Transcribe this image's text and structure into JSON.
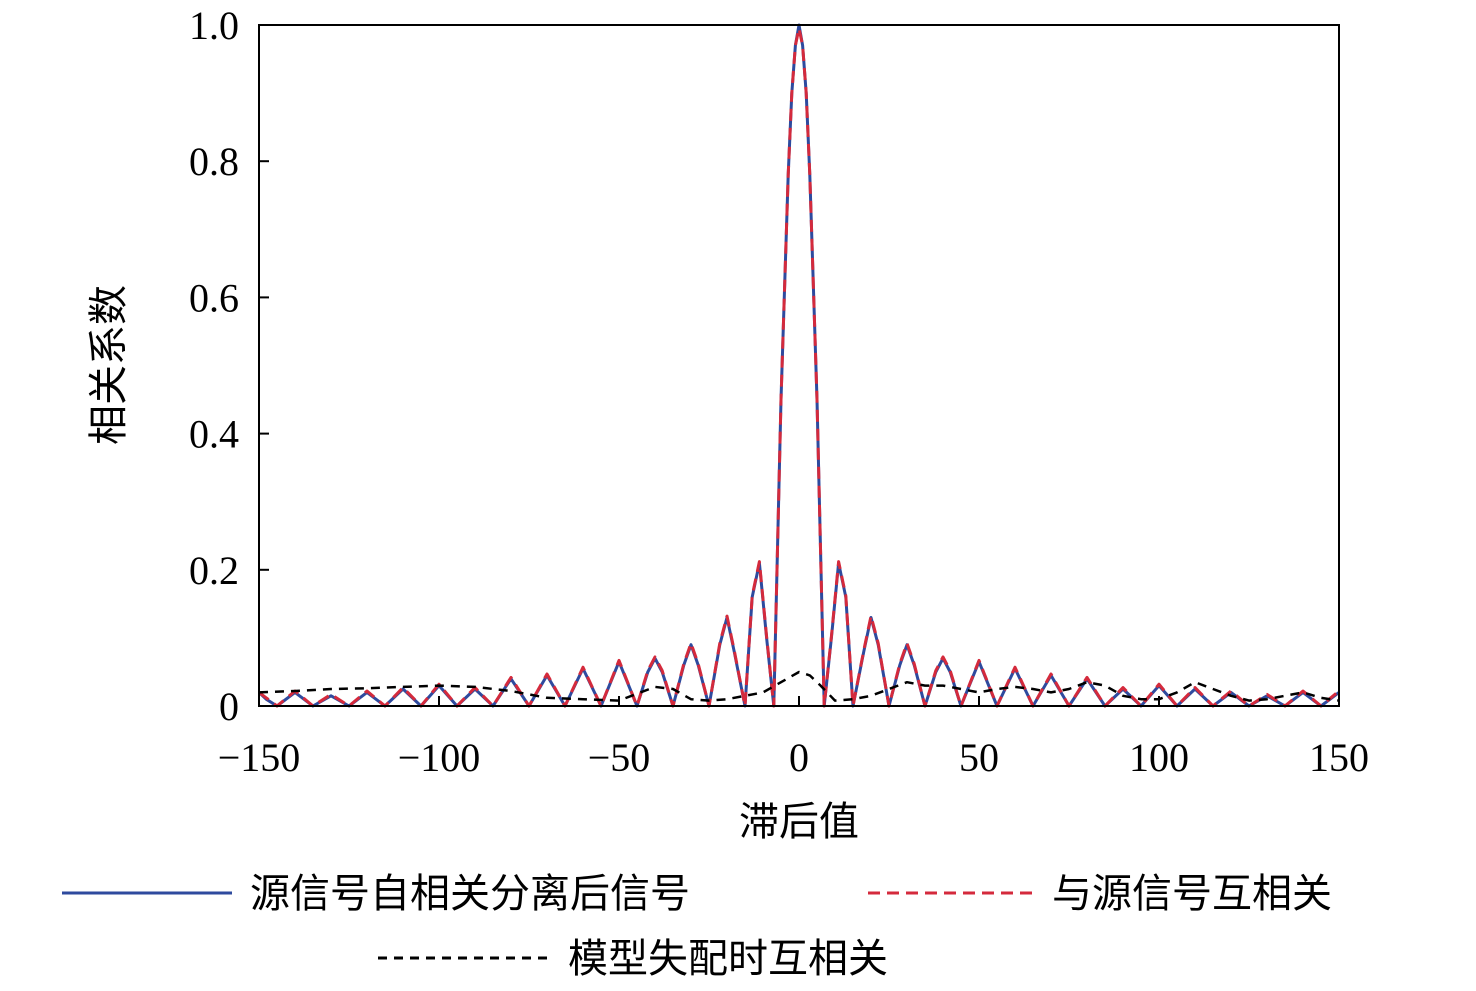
{
  "chart_data": {
    "type": "line",
    "xlabel": "滞后值",
    "ylabel": "相关系数",
    "xlim": [
      -150,
      150
    ],
    "ylim": [
      0,
      1.0
    ],
    "xticks": [
      -150,
      -100,
      -50,
      0,
      50,
      100,
      150
    ],
    "xtick_labels": [
      "−150",
      "−100",
      "−50",
      "0",
      "50",
      "100",
      "150"
    ],
    "yticks": [
      0,
      0.2,
      0.4,
      0.6,
      0.8,
      1.0
    ],
    "ytick_labels": [
      "0",
      "0.2",
      "0.4",
      "0.6",
      "0.8",
      "1.0"
    ],
    "grid": false,
    "legend_position": "bottom",
    "series": [
      {
        "name": "源信号自相关分离后信号",
        "color": "#2e4a9e",
        "dash": "solid",
        "x": [
          -150,
          -148,
          -145,
          -140,
          -135,
          -130,
          -125,
          -120,
          -115,
          -110,
          -105,
          -100,
          -95,
          -90,
          -85,
          -80,
          -75,
          -70,
          -65,
          -60,
          -55,
          -50,
          -45,
          -42,
          -40,
          -38,
          -35,
          -32,
          -30,
          -28,
          -25,
          -22,
          -20,
          -18,
          -15,
          -13,
          -11,
          -9,
          -7,
          -5,
          -3,
          -2,
          -1,
          0,
          1,
          2,
          3,
          5,
          7,
          9,
          11,
          13,
          15,
          18,
          20,
          22,
          25,
          28,
          30,
          32,
          35,
          38,
          40,
          42,
          45,
          50,
          55,
          60,
          65,
          70,
          75,
          80,
          85,
          90,
          95,
          100,
          105,
          110,
          115,
          120,
          125,
          130,
          135,
          140,
          145,
          150
        ],
        "y": [
          0.02,
          0.01,
          0.0,
          0.02,
          0.0,
          0.015,
          0.0,
          0.02,
          0.0,
          0.025,
          0.0,
          0.03,
          0.0,
          0.025,
          0.0,
          0.04,
          0.0,
          0.045,
          0.0,
          0.055,
          0.0,
          0.065,
          0.0,
          0.05,
          0.07,
          0.05,
          0.0,
          0.06,
          0.09,
          0.06,
          0.0,
          0.09,
          0.13,
          0.08,
          0.0,
          0.16,
          0.21,
          0.1,
          0.0,
          0.45,
          0.78,
          0.9,
          0.97,
          1.0,
          0.97,
          0.9,
          0.78,
          0.45,
          0.0,
          0.1,
          0.21,
          0.16,
          0.0,
          0.08,
          0.13,
          0.09,
          0.0,
          0.06,
          0.09,
          0.06,
          0.0,
          0.05,
          0.07,
          0.05,
          0.0,
          0.065,
          0.0,
          0.055,
          0.0,
          0.045,
          0.0,
          0.04,
          0.0,
          0.025,
          0.0,
          0.03,
          0.0,
          0.025,
          0.0,
          0.02,
          0.0,
          0.015,
          0.0,
          0.02,
          0.0,
          0.02
        ]
      },
      {
        "name": "与源信号互相关",
        "color": "#d42a3c",
        "dash": "dashed",
        "x": [
          -150,
          -148,
          -145,
          -140,
          -135,
          -130,
          -125,
          -120,
          -115,
          -110,
          -105,
          -100,
          -95,
          -90,
          -85,
          -80,
          -75,
          -70,
          -65,
          -60,
          -55,
          -50,
          -45,
          -42,
          -40,
          -38,
          -35,
          -32,
          -30,
          -28,
          -25,
          -22,
          -20,
          -18,
          -15,
          -13,
          -11,
          -9,
          -7,
          -5,
          -3,
          -2,
          -1,
          0,
          1,
          2,
          3,
          5,
          7,
          9,
          11,
          13,
          15,
          18,
          20,
          22,
          25,
          28,
          30,
          32,
          35,
          38,
          40,
          42,
          45,
          50,
          55,
          60,
          65,
          70,
          75,
          80,
          85,
          90,
          95,
          100,
          105,
          110,
          115,
          120,
          125,
          130,
          135,
          140,
          145,
          150
        ],
        "y": [
          0.02,
          0.012,
          0.0,
          0.022,
          0.0,
          0.017,
          0.0,
          0.022,
          0.0,
          0.027,
          0.0,
          0.032,
          0.0,
          0.027,
          0.0,
          0.042,
          0.0,
          0.047,
          0.0,
          0.057,
          0.0,
          0.067,
          0.0,
          0.052,
          0.072,
          0.052,
          0.0,
          0.062,
          0.092,
          0.062,
          0.0,
          0.092,
          0.132,
          0.082,
          0.0,
          0.162,
          0.212,
          0.102,
          0.0,
          0.45,
          0.78,
          0.9,
          0.97,
          0.995,
          0.97,
          0.9,
          0.78,
          0.45,
          0.0,
          0.102,
          0.212,
          0.162,
          0.0,
          0.082,
          0.132,
          0.092,
          0.0,
          0.062,
          0.092,
          0.062,
          0.0,
          0.052,
          0.072,
          0.052,
          0.0,
          0.067,
          0.0,
          0.057,
          0.0,
          0.047,
          0.0,
          0.042,
          0.0,
          0.027,
          0.0,
          0.032,
          0.0,
          0.027,
          0.0,
          0.022,
          0.0,
          0.017,
          0.0,
          0.022,
          0.0,
          0.022
        ]
      },
      {
        "name": "模型失配时互相关",
        "color": "#000000",
        "dash": "dashed",
        "x": [
          -150,
          -140,
          -130,
          -120,
          -110,
          -100,
          -90,
          -80,
          -70,
          -60,
          -50,
          -40,
          -35,
          -30,
          -25,
          -20,
          -15,
          -10,
          -5,
          0,
          3,
          6,
          10,
          15,
          20,
          25,
          30,
          35,
          40,
          45,
          50,
          55,
          60,
          65,
          70,
          75,
          80,
          85,
          90,
          95,
          100,
          105,
          110,
          115,
          120,
          125,
          130,
          135,
          140,
          145,
          150
        ],
        "y": [
          0.02,
          0.022,
          0.025,
          0.026,
          0.028,
          0.03,
          0.028,
          0.022,
          0.012,
          0.01,
          0.008,
          0.028,
          0.025,
          0.01,
          0.008,
          0.01,
          0.015,
          0.02,
          0.035,
          0.05,
          0.045,
          0.03,
          0.008,
          0.01,
          0.015,
          0.025,
          0.035,
          0.03,
          0.03,
          0.025,
          0.02,
          0.025,
          0.028,
          0.025,
          0.02,
          0.025,
          0.035,
          0.03,
          0.015,
          0.01,
          0.01,
          0.02,
          0.035,
          0.025,
          0.015,
          0.008,
          0.01,
          0.015,
          0.02,
          0.012,
          0.008
        ]
      }
    ]
  }
}
